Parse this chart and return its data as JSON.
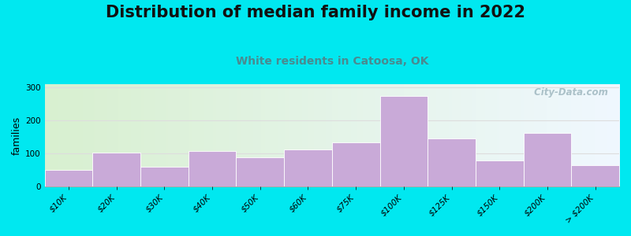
{
  "title": "Distribution of median family income in 2022",
  "subtitle": "White residents in Catoosa, OK",
  "categories": [
    "$10K",
    "$20K",
    "$30K",
    "$40K",
    "$50K",
    "$60K",
    "$75K",
    "$100K",
    "$125K",
    "$150K",
    "$200K",
    "> $200K"
  ],
  "values": [
    50,
    103,
    60,
    108,
    88,
    112,
    133,
    275,
    145,
    78,
    162,
    65
  ],
  "bar_color": "#c9aad8",
  "bar_edge_color": "#ffffff",
  "background_outer": "#00e8f0",
  "plot_bg_left": "#d8f0d0",
  "plot_bg_right": "#f0f8ff",
  "title_color": "#111111",
  "subtitle_color": "#4a8a90",
  "ylabel": "families",
  "ylim": [
    0,
    310
  ],
  "yticks": [
    0,
    100,
    200,
    300
  ],
  "watermark": " City-Data.com",
  "title_fontsize": 15,
  "subtitle_fontsize": 10,
  "ylabel_fontsize": 9,
  "tick_fontsize": 7.5,
  "grid_color": "#dddddd"
}
